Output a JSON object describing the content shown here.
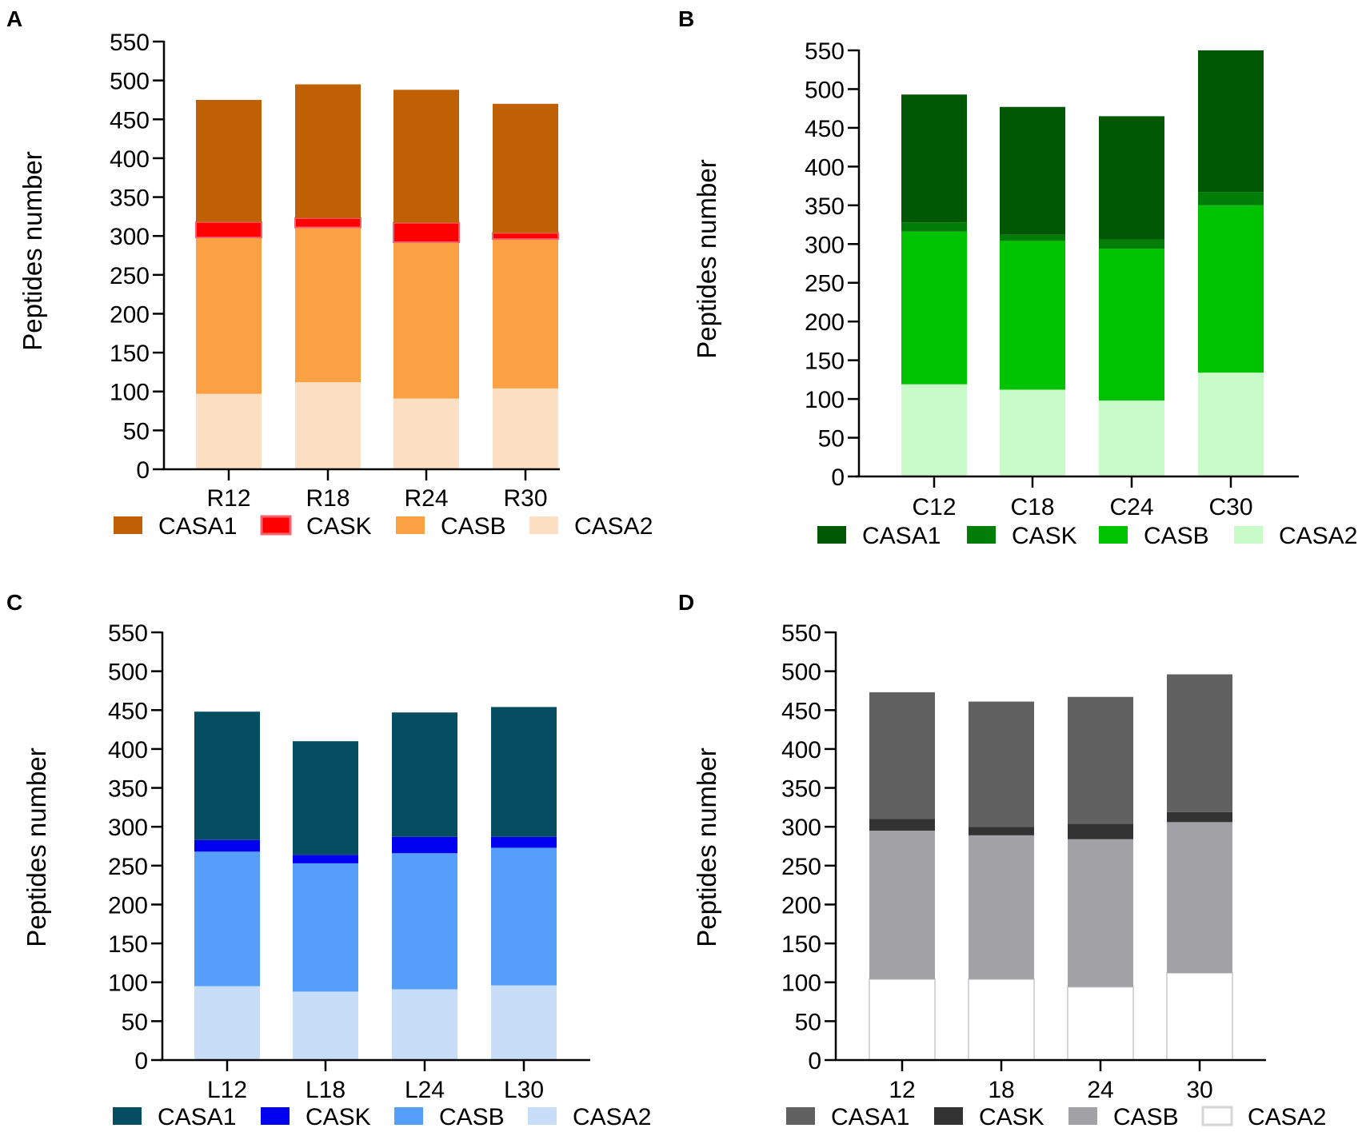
{
  "chart_data": [
    {
      "panel_label": "A",
      "type": "bar",
      "stacked": true,
      "categories": [
        "R12",
        "R18",
        "R24",
        "R30"
      ],
      "ylabel": "Peptides number",
      "ylim": [
        0,
        550
      ],
      "yticks": [
        0,
        50,
        100,
        150,
        200,
        250,
        300,
        350,
        400,
        450,
        500,
        550
      ],
      "series": [
        {
          "name": "CASA2",
          "color": "#FDDFC3",
          "values": [
            97,
            112,
            91,
            104
          ]
        },
        {
          "name": "CASB",
          "color": "#FCA044",
          "values": [
            201,
            199,
            201,
            192
          ]
        },
        {
          "name": "CASK",
          "color": "#FF0000",
          "edge": "#F4646E",
          "values": [
            20,
            12,
            25,
            8
          ]
        },
        {
          "name": "CASA1",
          "color": "#C06004",
          "values": [
            157,
            172,
            171,
            166
          ]
        }
      ],
      "legend": [
        "CASA1",
        "CASK",
        "CASB",
        "CASA2"
      ]
    },
    {
      "panel_label": "B",
      "type": "bar",
      "stacked": true,
      "categories": [
        "C12",
        "C18",
        "C24",
        "C30"
      ],
      "ylabel": "Peptides number",
      "ylim": [
        0,
        550
      ],
      "yticks": [
        0,
        50,
        100,
        150,
        200,
        250,
        300,
        350,
        400,
        450,
        500,
        550
      ],
      "series": [
        {
          "name": "CASA2",
          "color": "#C9FBC9",
          "values": [
            119,
            112,
            98,
            134
          ]
        },
        {
          "name": "CASB",
          "color": "#00C300",
          "values": [
            197,
            192,
            196,
            216
          ]
        },
        {
          "name": "CASK",
          "color": "#007E07",
          "values": [
            12,
            8,
            12,
            17
          ]
        },
        {
          "name": "CASA1",
          "color": "#005805",
          "values": [
            165,
            165,
            159,
            183
          ]
        }
      ],
      "legend": [
        "CASA1",
        "CASK",
        "CASB",
        "CASA2"
      ]
    },
    {
      "panel_label": "C",
      "type": "bar",
      "stacked": true,
      "categories": [
        "L12",
        "L18",
        "L24",
        "L30"
      ],
      "ylabel": "Peptides number",
      "ylim": [
        0,
        550
      ],
      "yticks": [
        0,
        50,
        100,
        150,
        200,
        250,
        300,
        350,
        400,
        450,
        500,
        550
      ],
      "series": [
        {
          "name": "CASA2",
          "color": "#C8DEF8",
          "values": [
            95,
            88,
            91,
            96
          ]
        },
        {
          "name": "CASB",
          "color": "#559FFA",
          "values": [
            173,
            165,
            175,
            177
          ]
        },
        {
          "name": "CASK",
          "color": "#0000F0",
          "values": [
            15,
            11,
            21,
            14
          ]
        },
        {
          "name": "CASA1",
          "color": "#054E62",
          "values": [
            165,
            146,
            160,
            167
          ]
        }
      ],
      "legend": [
        "CASA1",
        "CASK",
        "CASB",
        "CASA2"
      ]
    },
    {
      "panel_label": "D",
      "type": "bar",
      "stacked": true,
      "categories": [
        "12",
        "18",
        "24",
        "30"
      ],
      "ylabel": "Peptides number",
      "ylim": [
        0,
        550
      ],
      "yticks": [
        0,
        50,
        100,
        150,
        200,
        250,
        300,
        350,
        400,
        450,
        500,
        550
      ],
      "series": [
        {
          "name": "CASA2",
          "color": "#FFFFFF",
          "edge": "#D6D6D6",
          "values": [
            104,
            104,
            94,
            112
          ]
        },
        {
          "name": "CASB",
          "color": "#A2A2A6",
          "values": [
            191,
            185,
            190,
            194
          ]
        },
        {
          "name": "CASK",
          "color": "#333333",
          "values": [
            15,
            11,
            20,
            13
          ]
        },
        {
          "name": "CASA1",
          "color": "#616161",
          "values": [
            163,
            161,
            163,
            177
          ]
        }
      ],
      "legend": [
        "CASA1",
        "CASK",
        "CASB",
        "CASA2"
      ]
    }
  ]
}
